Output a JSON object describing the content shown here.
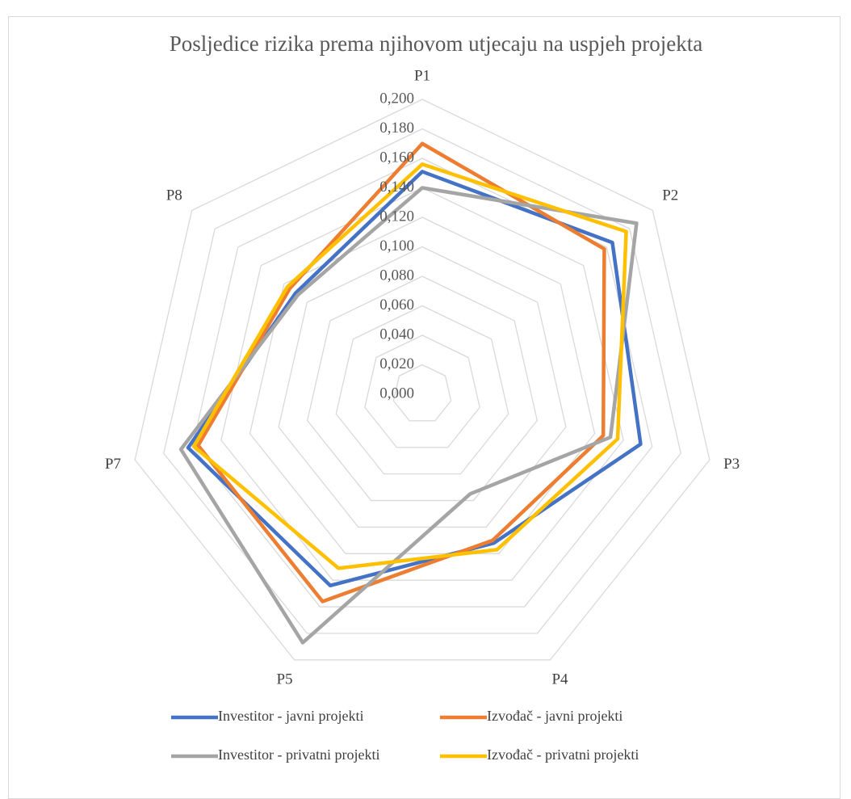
{
  "chart_data": {
    "type": "radar",
    "title": "Posljedice rizika prema njihovom utjecaju na uspjeh projekta",
    "categories": [
      "P1",
      "P2",
      "P3",
      "P4",
      "P5",
      "P7",
      "P8"
    ],
    "series": [
      {
        "name": "Investitor - javni projekti",
        "color": "#4472c4",
        "values": [
          0.151,
          0.165,
          0.152,
          0.112,
          0.144,
          0.163,
          0.11
        ]
      },
      {
        "name": "Izvođač - javni projekti",
        "color": "#ed7d31",
        "values": [
          0.17,
          0.158,
          0.126,
          0.11,
          0.156,
          0.156,
          0.115
        ]
      },
      {
        "name": "Investitor - privatni projekti",
        "color": "#a5a5a5",
        "values": [
          0.14,
          0.186,
          0.131,
          0.075,
          0.187,
          0.168,
          0.108
        ]
      },
      {
        "name": "Izvođač - privatni projekti",
        "color": "#ffc000",
        "values": [
          0.156,
          0.177,
          0.136,
          0.117,
          0.131,
          0.159,
          0.117
        ]
      }
    ],
    "ylim": [
      0,
      0.2
    ],
    "yticks": [
      {
        "value": 0,
        "label": "0,000"
      },
      {
        "value": 0.02,
        "label": "0,020"
      },
      {
        "value": 0.04,
        "label": "0,040"
      },
      {
        "value": 0.06,
        "label": "0,060"
      },
      {
        "value": 0.08,
        "label": "0,080"
      },
      {
        "value": 0.1,
        "label": "0,100"
      },
      {
        "value": 0.12,
        "label": "0,120"
      },
      {
        "value": 0.14,
        "label": "0,140"
      },
      {
        "value": 0.16,
        "label": "0,160"
      },
      {
        "value": 0.18,
        "label": "0,180"
      },
      {
        "value": 0.2,
        "label": "0,200"
      }
    ],
    "grid": true,
    "legend": "bottom"
  }
}
